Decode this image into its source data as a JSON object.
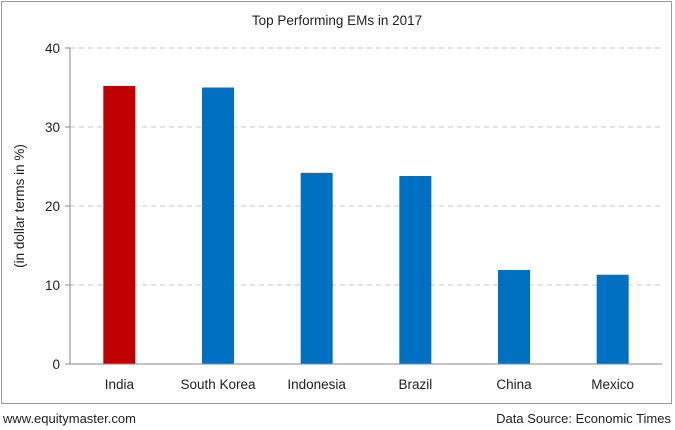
{
  "chart_data": {
    "type": "bar",
    "title": "Top Performing EMs in 2017",
    "xlabel": "",
    "ylabel": "(in dollar terms in %)",
    "categories": [
      "India",
      "South Korea",
      "Indonesia",
      "Brazil",
      "China",
      "Mexico"
    ],
    "values": [
      35.2,
      35.0,
      24.2,
      23.8,
      11.9,
      11.3
    ],
    "colors": [
      "#c00000",
      "#0070c0",
      "#0070c0",
      "#0070c0",
      "#0070c0",
      "#0070c0"
    ],
    "highlight_color": "#c00000",
    "bar_color": "#0070c0",
    "ylim": [
      0,
      40
    ],
    "yticks": [
      "0",
      "10",
      "20",
      "30",
      "40"
    ],
    "grid": true,
    "legend": "none"
  },
  "footer": {
    "source_site": "www.equitymaster.com",
    "data_source": "Data Source: Economic Times"
  }
}
